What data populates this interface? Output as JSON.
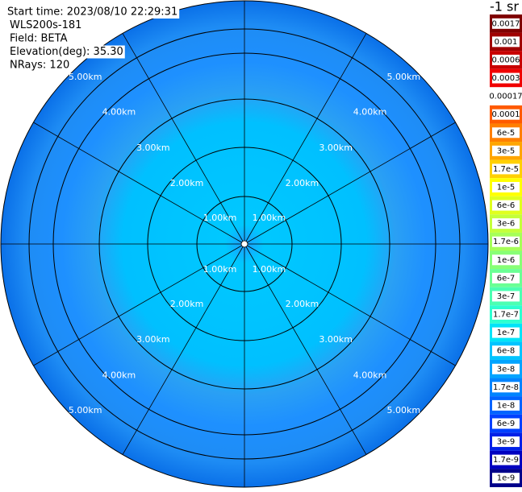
{
  "header": {
    "lines": [
      "Start time: 2023/08/10 22:29:31",
      "WLS200s-181",
      "Field: BETA",
      "Elevation(deg): 35.30",
      "NRays: 120"
    ]
  },
  "plot": {
    "ring_labels": [
      "1.00km",
      "2.00km",
      "3.00km",
      "4.00km",
      "5.00km"
    ]
  },
  "colorbar": {
    "title": "-1 sr",
    "levels": [
      {
        "label": "0.0017",
        "color": "#7f0000"
      },
      {
        "label": "0.001",
        "color": "#a00000"
      },
      {
        "label": "0.0006",
        "color": "#c80000"
      },
      {
        "label": "0.0003",
        "color": "#f00000"
      },
      {
        "label": "0.00017",
        "color": "#ffffff"
      },
      {
        "label": "0.0001",
        "color": "#ff5a00"
      },
      {
        "label": "6e-5",
        "color": "#ff7f00"
      },
      {
        "label": "3e-5",
        "color": "#ffa500"
      },
      {
        "label": "1.7e-5",
        "color": "#ffd000"
      },
      {
        "label": "1e-5",
        "color": "#ffff00"
      },
      {
        "label": "6e-6",
        "color": "#e0ff1e"
      },
      {
        "label": "3e-6",
        "color": "#c4ff3a"
      },
      {
        "label": "1.7e-6",
        "color": "#a6ff58"
      },
      {
        "label": "1e-6",
        "color": "#88ff76"
      },
      {
        "label": "6e-7",
        "color": "#6aff94"
      },
      {
        "label": "3e-7",
        "color": "#4cffb2"
      },
      {
        "label": "1.7e-7",
        "color": "#2effd0"
      },
      {
        "label": "1e-7",
        "color": "#00e4f8"
      },
      {
        "label": "6e-8",
        "color": "#00c4ff"
      },
      {
        "label": "3e-8",
        "color": "#00a4ff"
      },
      {
        "label": "1.7e-8",
        "color": "#0084ff"
      },
      {
        "label": "1e-8",
        "color": "#0064ff"
      },
      {
        "label": "6e-9",
        "color": "#0040ff"
      },
      {
        "label": "3e-9",
        "color": "#0020e8"
      },
      {
        "label": "1.7e-9",
        "color": "#0000c0"
      },
      {
        "label": "1e-9",
        "color": "#00008a"
      }
    ]
  }
}
